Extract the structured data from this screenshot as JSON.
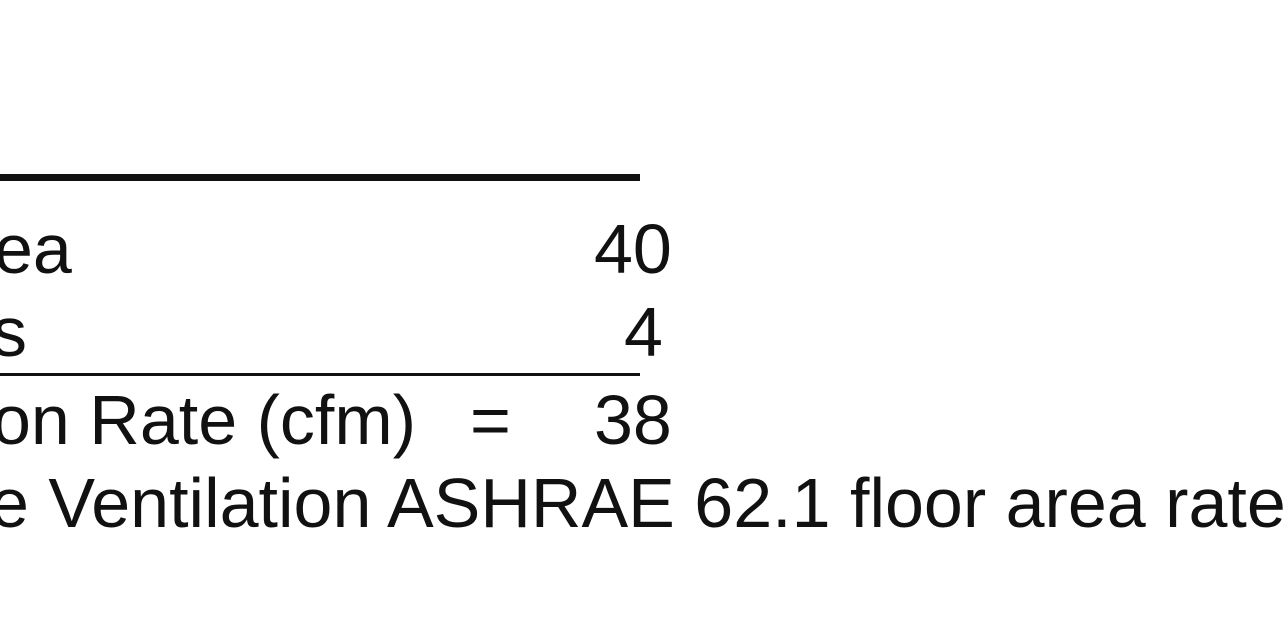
{
  "table": {
    "rows": [
      {
        "label": "ea",
        "value": "40"
      },
      {
        "label": "s",
        "value": "4"
      },
      {
        "label": "on Rate (cfm)",
        "equals": "=",
        "value": "38"
      }
    ],
    "clipped_line_text": "e Ventilation ASHRAE 62.1 floor area rate"
  }
}
